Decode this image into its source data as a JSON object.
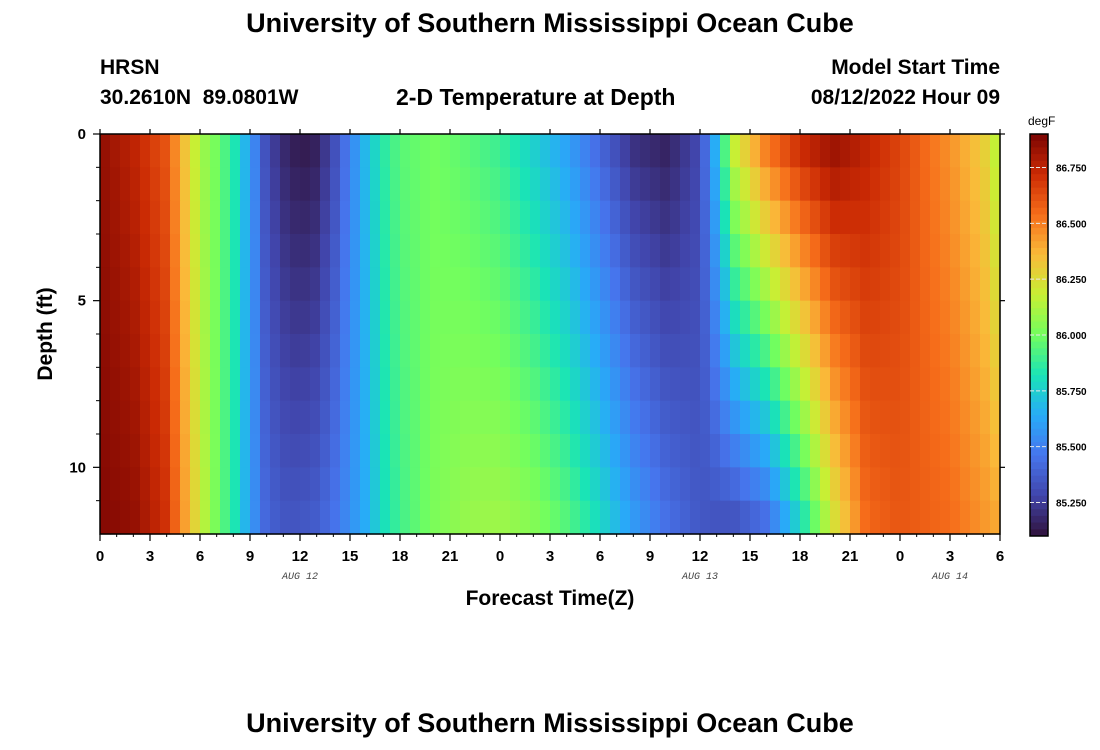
{
  "header": {
    "title": "University of Southern Mississippi Ocean Cube",
    "station": "HRSN",
    "coords": "30.2610N  89.0801W",
    "plot_title": "2-D Temperature at Depth",
    "model_start_label": "Model Start Time",
    "model_start_value": "08/12/2022 Hour 09"
  },
  "footer": {
    "title": "University of Southern Mississippi Ocean Cube"
  },
  "chart_data": {
    "type": "heatmap",
    "title": "2-D Temperature at Depth",
    "xlabel": "Forecast Time(Z)",
    "ylabel": "Depth (ft)",
    "x_hours": [
      0,
      54
    ],
    "y_depth_ft": [
      0,
      12
    ],
    "x_tick_labels": [
      "0",
      "3",
      "6",
      "9",
      "12",
      "15",
      "18",
      "21",
      "0",
      "3",
      "6",
      "9",
      "12",
      "15",
      "18",
      "21",
      "0",
      "3",
      "6"
    ],
    "y_tick_labels": [
      "0",
      "5",
      "10"
    ],
    "y_tick_values": [
      0,
      5,
      10
    ],
    "date_labels": [
      {
        "text": "AUG 12",
        "hour": 12
      },
      {
        "text": "AUG 13",
        "hour": 36
      },
      {
        "text": "AUG 14",
        "hour": 51
      }
    ],
    "colorbar": {
      "unit": "degF",
      "min": 85.1,
      "max": 86.9,
      "ticks": [
        "86.750",
        "86.500",
        "86.250",
        "86.000",
        "85.750",
        "85.500",
        "85.250"
      ],
      "tick_values": [
        86.75,
        86.5,
        86.25,
        86.0,
        85.75,
        85.5,
        85.25
      ]
    },
    "shallow_profile_0ft": [
      [
        0,
        86.85
      ],
      [
        2,
        86.75
      ],
      [
        4,
        86.6
      ],
      [
        5,
        86.35
      ],
      [
        6,
        86.1
      ],
      [
        7,
        86.0
      ],
      [
        8,
        85.85
      ],
      [
        9,
        85.6
      ],
      [
        10,
        85.3
      ],
      [
        11,
        85.18
      ],
      [
        12,
        85.12
      ],
      [
        13,
        85.15
      ],
      [
        14,
        85.3
      ],
      [
        15,
        85.5
      ],
      [
        16,
        85.7
      ],
      [
        17,
        85.85
      ],
      [
        18,
        85.95
      ],
      [
        20,
        86.0
      ],
      [
        22,
        85.95
      ],
      [
        24,
        85.88
      ],
      [
        26,
        85.75
      ],
      [
        28,
        85.6
      ],
      [
        30,
        85.4
      ],
      [
        32,
        85.2
      ],
      [
        34,
        85.15
      ],
      [
        36,
        85.3
      ],
      [
        37,
        85.7
      ],
      [
        38,
        86.2
      ],
      [
        40,
        86.55
      ],
      [
        42,
        86.75
      ],
      [
        44,
        86.85
      ],
      [
        48,
        86.65
      ],
      [
        51,
        86.45
      ],
      [
        53,
        86.3
      ],
      [
        54,
        86.1
      ]
    ],
    "deep_profile_12ft": [
      [
        0,
        86.88
      ],
      [
        2,
        86.85
      ],
      [
        4,
        86.7
      ],
      [
        5,
        86.45
      ],
      [
        6,
        86.2
      ],
      [
        7,
        86.0
      ],
      [
        8,
        85.85
      ],
      [
        9,
        85.6
      ],
      [
        10,
        85.4
      ],
      [
        11,
        85.35
      ],
      [
        12,
        85.35
      ],
      [
        13,
        85.38
      ],
      [
        14,
        85.45
      ],
      [
        15,
        85.55
      ],
      [
        16,
        85.65
      ],
      [
        17,
        85.8
      ],
      [
        18,
        85.9
      ],
      [
        20,
        86.02
      ],
      [
        22,
        86.08
      ],
      [
        24,
        86.1
      ],
      [
        26,
        86.05
      ],
      [
        28,
        85.95
      ],
      [
        30,
        85.8
      ],
      [
        32,
        85.6
      ],
      [
        34,
        85.45
      ],
      [
        36,
        85.35
      ],
      [
        38,
        85.3
      ],
      [
        40,
        85.4
      ],
      [
        42,
        85.75
      ],
      [
        44,
        86.2
      ],
      [
        46,
        86.55
      ],
      [
        48,
        86.6
      ],
      [
        51,
        86.55
      ],
      [
        54,
        86.4
      ]
    ]
  }
}
